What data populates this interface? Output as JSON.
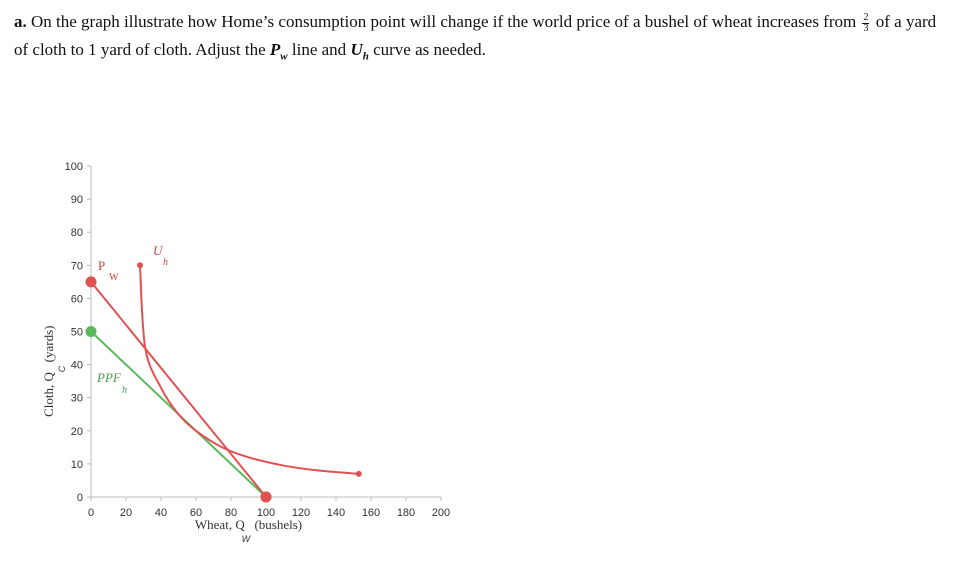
{
  "question": {
    "part": "a.",
    "text_before_fraction": "On the graph illustrate how Home’s consumption point will change if the world price of a bushel of wheat increases from",
    "fraction_num": "2",
    "fraction_den": "3",
    "text_after_fraction": "of a yard of cloth to 1 yard of cloth. Adjust the",
    "pw_var": "P",
    "pw_sub": "w",
    "text_middle": "line and",
    "uh_var": "U",
    "uh_sub": "h",
    "text_end": "curve as needed."
  },
  "chart_data": {
    "type": "line",
    "xlabel_main": "Wheat, Q",
    "xlabel_sub": "W",
    "xlabel_unit": "(bushels)",
    "ylabel_main": "Cloth, Q",
    "ylabel_sub": "C",
    "ylabel_unit": "(yards)",
    "xlim": [
      0,
      200
    ],
    "ylim": [
      0,
      100
    ],
    "x_ticks": [
      "0",
      "20",
      "40",
      "60",
      "80",
      "100",
      "120",
      "140",
      "160",
      "180",
      "200"
    ],
    "y_ticks": [
      "0",
      "10",
      "20",
      "30",
      "40",
      "50",
      "60",
      "70",
      "80",
      "90",
      "100"
    ],
    "grid": false,
    "series": [
      {
        "name": "PPF",
        "name_sub": "h",
        "color": "#5cb85c",
        "points": [
          [
            0,
            50
          ],
          [
            100,
            0
          ]
        ],
        "endpoints": "large-dots"
      },
      {
        "name": "P",
        "name_sub": "W",
        "color": "#e05252",
        "points": [
          [
            0,
            65
          ],
          [
            100,
            0
          ]
        ],
        "endpoints": "large-dots"
      },
      {
        "name": "U",
        "name_sub": "h",
        "color": "#e05252",
        "points": [
          [
            28,
            70
          ],
          [
            31,
            45
          ],
          [
            40,
            33
          ],
          [
            50,
            25
          ],
          [
            60,
            20
          ],
          [
            75,
            15
          ],
          [
            90,
            12
          ],
          [
            110,
            9.5
          ],
          [
            130,
            8
          ],
          [
            153,
            7
          ]
        ],
        "endpoints": "small-dots"
      }
    ]
  }
}
